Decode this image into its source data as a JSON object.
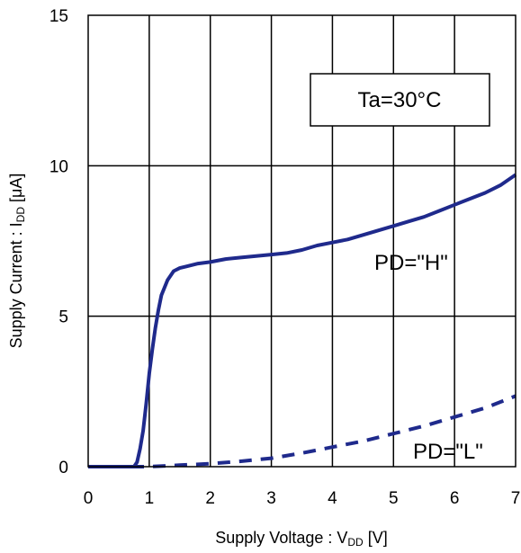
{
  "chart_data": {
    "type": "line",
    "xlabel": "Supply Voltage : V",
    "xlabel_sub": "DD",
    "xlabel_unit": " [V]",
    "ylabel": "Supply Current : I",
    "ylabel_sub": "DD",
    "ylabel_unit": " [μA]",
    "xlim": [
      0,
      7
    ],
    "ylim": [
      0,
      15
    ],
    "x_ticks": [
      0,
      1,
      2,
      3,
      4,
      5,
      6,
      7
    ],
    "y_ticks": [
      0,
      5,
      10,
      15
    ],
    "grid": true,
    "annotations": {
      "condition": "Ta=30°C",
      "series_h": "PD=\"H\"",
      "series_l": "PD=\"L\""
    },
    "series": [
      {
        "name": "PD=\"H\"",
        "style": "solid",
        "color": "#1f2a8c",
        "x": [
          0,
          0.5,
          0.75,
          0.8,
          0.85,
          0.9,
          0.95,
          1.0,
          1.05,
          1.1,
          1.15,
          1.2,
          1.3,
          1.4,
          1.5,
          1.6,
          1.8,
          2.0,
          2.25,
          2.5,
          2.75,
          3.0,
          3.25,
          3.5,
          3.75,
          4.0,
          4.25,
          4.5,
          4.75,
          5.0,
          5.25,
          5.5,
          5.75,
          6.0,
          6.25,
          6.5,
          6.75,
          7.0
        ],
        "y": [
          0,
          0,
          0,
          0.15,
          0.6,
          1.2,
          2.1,
          3.1,
          3.9,
          4.6,
          5.2,
          5.7,
          6.2,
          6.5,
          6.6,
          6.65,
          6.75,
          6.8,
          6.9,
          6.95,
          7.0,
          7.05,
          7.1,
          7.2,
          7.35,
          7.45,
          7.55,
          7.7,
          7.85,
          8.0,
          8.15,
          8.3,
          8.5,
          8.7,
          8.9,
          9.1,
          9.35,
          9.7
        ]
      },
      {
        "name": "PD=\"L\"",
        "style": "dashed",
        "color": "#1f2a8c",
        "x": [
          0,
          1.0,
          1.5,
          2.0,
          2.5,
          3.0,
          3.5,
          4.0,
          4.5,
          5.0,
          5.5,
          6.0,
          6.5,
          7.0
        ],
        "y": [
          0,
          0,
          0.05,
          0.1,
          0.18,
          0.28,
          0.45,
          0.65,
          0.85,
          1.1,
          1.35,
          1.65,
          1.95,
          2.35
        ]
      }
    ]
  }
}
